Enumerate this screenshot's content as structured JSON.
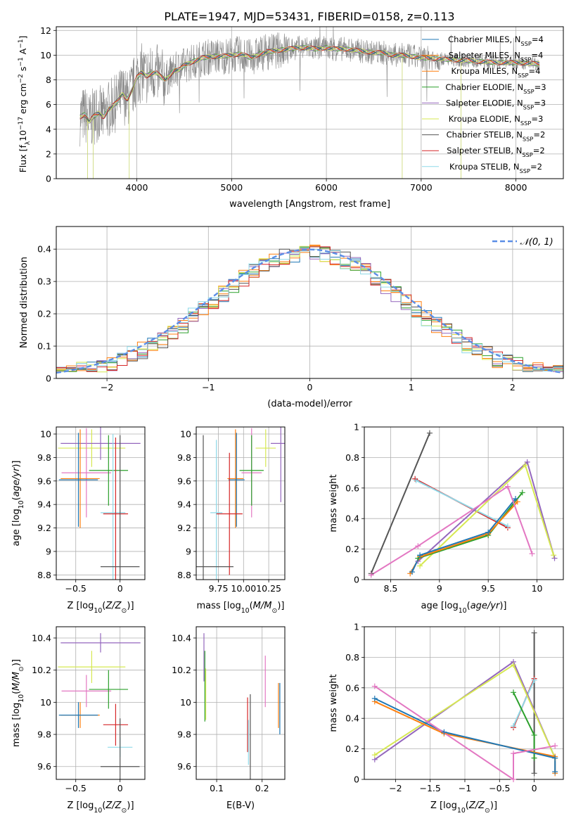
{
  "figure_title": "PLATE=1947, MJD=53431, FIBERID=0158, z=0.113",
  "colors": {
    "chabrier_miles": "#1f77b4",
    "salpeter_miles": "#ff7f0e",
    "kroupa_miles": "#ff7f0e",
    "chabrier_elodie": "#2ca02c",
    "salpeter_elodie": "#9467bd",
    "kroupa_elodie": "#d6e852",
    "chabrier_stelib": "#555555",
    "salpeter_stelib": "#d62728",
    "kroupa_stelib": "#8fd9e8",
    "pink": "#e377c2",
    "normal": "#5b8ee6",
    "data": "#888888",
    "grid": "#b0b0b0"
  },
  "chart_data": [
    {
      "id": "spectrum",
      "type": "line",
      "xlabel": "wavelength [Angstrom, rest frame]",
      "ylabel_base": "Flux [f",
      "ylabel_sub": "λ",
      "ylabel_mid": "10",
      "ylabel_sup1": "−17",
      "ylabel_mid2": " erg cm",
      "ylabel_sup2": "−2",
      "ylabel_mid3": " s",
      "ylabel_sup3": "−1",
      "ylabel_mid4": " A",
      "ylabel_sup4": "−1",
      "ylabel_end": "]",
      "xlim": [
        3150,
        8500
      ],
      "ylim": [
        0,
        12.3
      ],
      "xticks": [
        4000,
        5000,
        6000,
        7000,
        8000
      ],
      "yticks": [
        0,
        2,
        4,
        6,
        8,
        10,
        12
      ],
      "legend": [
        {
          "name": "Chabrier MILES, N",
          "sub": "SSP",
          "suffix": "=4",
          "color": "#1f77b4"
        },
        {
          "name": "Salpeter MILES, N",
          "sub": "SSP",
          "suffix": "=4",
          "color": "#ff7f0e"
        },
        {
          "name": "Kroupa MILES, N",
          "sub": "SSP",
          "suffix": "=4",
          "color": "#ff7f0e"
        },
        {
          "name": "Chabrier ELODIE, N",
          "sub": "SSP",
          "suffix": "=3",
          "color": "#2ca02c"
        },
        {
          "name": "Salpeter ELODIE, N",
          "sub": "SSP",
          "suffix": "=3",
          "color": "#9467bd"
        },
        {
          "name": "Kroupa ELODIE, N",
          "sub": "SSP",
          "suffix": "=3",
          "color": "#d6e852"
        },
        {
          "name": "Chabrier STELIB, N",
          "sub": "SSP",
          "suffix": "=2",
          "color": "#555555"
        },
        {
          "name": "Salpeter STELIB, N",
          "sub": "SSP",
          "suffix": "=2",
          "color": "#d62728"
        },
        {
          "name": "Kroupa STELIB, N",
          "sub": "SSP",
          "suffix": "=2",
          "color": "#8fd9e8"
        }
      ],
      "model_continuum": [
        [
          3400,
          5.0
        ],
        [
          3450,
          5.2
        ],
        [
          3500,
          4.6
        ],
        [
          3550,
          5.1
        ],
        [
          3600,
          5.3
        ],
        [
          3650,
          5.0
        ],
        [
          3700,
          5.6
        ],
        [
          3750,
          5.9
        ],
        [
          3800,
          6.3
        ],
        [
          3850,
          6.9
        ],
        [
          3900,
          6.4
        ],
        [
          3950,
          7.2
        ],
        [
          4000,
          8.2
        ],
        [
          4050,
          8.6
        ],
        [
          4100,
          8.3
        ],
        [
          4150,
          8.5
        ],
        [
          4200,
          8.6
        ],
        [
          4250,
          8.3
        ],
        [
          4300,
          8.0
        ],
        [
          4350,
          8.4
        ],
        [
          4400,
          8.8
        ],
        [
          4450,
          8.8
        ],
        [
          4500,
          9.2
        ],
        [
          4600,
          9.5
        ],
        [
          4700,
          9.8
        ],
        [
          4800,
          9.9
        ],
        [
          4900,
          9.9
        ],
        [
          5000,
          10.0
        ],
        [
          5100,
          10.1
        ],
        [
          5200,
          9.8
        ],
        [
          5300,
          10.1
        ],
        [
          5400,
          10.3
        ],
        [
          5500,
          10.4
        ],
        [
          5600,
          10.5
        ],
        [
          5700,
          10.6
        ],
        [
          5800,
          10.6
        ],
        [
          5900,
          10.5
        ],
        [
          6000,
          10.6
        ],
        [
          6100,
          10.5
        ],
        [
          6200,
          10.5
        ],
        [
          6300,
          10.4
        ],
        [
          6400,
          10.3
        ],
        [
          6500,
          10.2
        ],
        [
          6600,
          10.2
        ],
        [
          6700,
          10.0
        ],
        [
          6800,
          10.0
        ],
        [
          6900,
          9.9
        ],
        [
          7000,
          9.8
        ],
        [
          7200,
          9.7
        ],
        [
          7400,
          9.6
        ],
        [
          7600,
          9.5
        ],
        [
          7800,
          9.4
        ],
        [
          8000,
          9.4
        ],
        [
          8250,
          9.3
        ]
      ]
    },
    {
      "id": "residuals",
      "type": "line",
      "xlabel": "(data-model)/error",
      "ylabel": "Normed distribution",
      "legend_label": "𝒩(0, 1)",
      "xlim": [
        -2.5,
        2.5
      ],
      "ylim": [
        0,
        0.47
      ],
      "xticks": [
        -2,
        -1,
        0,
        1,
        2
      ],
      "yticks": [
        0.0,
        0.1,
        0.2,
        0.3,
        0.4
      ],
      "bin_width": 0.1
    },
    {
      "id": "z_vs_age",
      "type": "scatter",
      "xlabel": "Z [log",
      "xlabel_sub": "10",
      "xlabel_rest": "(Z/Z",
      "xlabel_sub2": "⊙",
      "xlabel_end": ")]",
      "ylabel": "age  [log",
      "ylabel_sub": "10",
      "ylabel_rest": "(age/yr)]",
      "xlim": [
        -0.72,
        0.28
      ],
      "ylim": [
        8.76,
        10.06
      ],
      "xticks": [
        -0.5,
        0.0
      ],
      "yticks": [
        8.8,
        9.0,
        9.2,
        9.4,
        9.6,
        9.8,
        10.0
      ],
      "points": [
        {
          "x": -0.32,
          "y": 9.88,
          "xerr": 0.38,
          "yerr": 0.16,
          "c": "kroupa_elodie"
        },
        {
          "x": -0.22,
          "y": 9.92,
          "xerr": 0.45,
          "yerr": 0.14,
          "c": "salpeter_elodie"
        },
        {
          "x": -0.38,
          "y": 9.67,
          "xerr": 0.28,
          "yerr": 0.38,
          "c": "pink"
        },
        {
          "x": -0.45,
          "y": 9.62,
          "xerr": 0.22,
          "yerr": 0.42,
          "c": "salpeter_miles"
        },
        {
          "x": -0.47,
          "y": 9.61,
          "xerr": 0.22,
          "yerr": 0.4,
          "c": "chabrier_miles"
        },
        {
          "x": -0.13,
          "y": 9.69,
          "xerr": 0.22,
          "yerr": 0.3,
          "c": "chabrier_elodie"
        },
        {
          "x": -0.08,
          "y": 9.33,
          "xerr": 0.14,
          "yerr": 0.67,
          "c": "kroupa_stelib"
        },
        {
          "x": -0.05,
          "y": 9.32,
          "xerr": 0.14,
          "yerr": 0.65,
          "c": "salpeter_stelib"
        },
        {
          "x": 0.0,
          "y": 8.87,
          "xerr": 0.22,
          "yerr": 1.12,
          "c": "chabrier_stelib"
        }
      ]
    },
    {
      "id": "mass_vs_age",
      "type": "scatter",
      "xlabel": "mass [log",
      "xlabel_sub": "10",
      "xlabel_rest": "(M/M",
      "xlabel_sub2": "⊙",
      "xlabel_end": ")]",
      "xlim": [
        9.53,
        10.41
      ],
      "ylim": [
        8.76,
        10.06
      ],
      "xticks": [
        9.75,
        10.0,
        10.25
      ],
      "xtick_labels": [
        "9.75",
        "10.00",
        "10.25"
      ],
      "yticks": [
        8.8,
        9.0,
        9.2,
        9.4,
        9.6,
        9.8,
        10.0
      ],
      "points": [
        {
          "x": 10.22,
          "y": 9.88,
          "xerr": 0.1,
          "yerr": 0.16,
          "c": "kroupa_elodie"
        },
        {
          "x": 10.37,
          "y": 9.92,
          "xerr": 0.1,
          "yerr": 0.5,
          "c": "salpeter_elodie"
        },
        {
          "x": 10.08,
          "y": 9.67,
          "xerr": 0.1,
          "yerr": 0.38,
          "c": "pink"
        },
        {
          "x": 9.92,
          "y": 9.62,
          "xerr": 0.08,
          "yerr": 0.42,
          "c": "salpeter_miles"
        },
        {
          "x": 9.93,
          "y": 9.61,
          "xerr": 0.08,
          "yerr": 0.4,
          "c": "chabrier_miles"
        },
        {
          "x": 10.08,
          "y": 9.69,
          "xerr": 0.12,
          "yerr": 0.3,
          "c": "chabrier_elodie"
        },
        {
          "x": 9.73,
          "y": 9.33,
          "xerr": 0.06,
          "yerr": 0.62,
          "c": "kroupa_stelib"
        },
        {
          "x": 9.86,
          "y": 9.32,
          "xerr": 0.13,
          "yerr": 0.52,
          "c": "salpeter_stelib"
        },
        {
          "x": 9.6,
          "y": 8.87,
          "xerr": 0.3,
          "yerr": 1.12,
          "c": "chabrier_stelib"
        }
      ]
    },
    {
      "id": "age_vs_weight",
      "type": "line",
      "xlabel": "age  [log",
      "xlabel_sub": "10",
      "xlabel_rest": "(age/yr)]",
      "ylabel": "mass weight",
      "xlim": [
        8.23,
        10.27
      ],
      "ylim": [
        0.0,
        1.0
      ],
      "xticks": [
        8.5,
        9.0,
        9.5,
        10.0
      ],
      "yticks": [
        0.0,
        0.2,
        0.4,
        0.6,
        0.8,
        1.0
      ],
      "series": [
        {
          "c": "chabrier_stelib",
          "pts": [
            [
              8.3,
              0.04
            ],
            [
              8.9,
              0.96
            ]
          ]
        },
        {
          "c": "salpeter_stelib",
          "pts": [
            [
              8.75,
              0.66
            ],
            [
              9.7,
              0.34
            ]
          ]
        },
        {
          "c": "kroupa_stelib",
          "pts": [
            [
              8.76,
              0.65
            ],
            [
              9.7,
              0.35
            ]
          ]
        },
        {
          "c": "salpeter_elodie",
          "pts": [
            [
              8.78,
              0.12
            ],
            [
              9.9,
              0.77
            ],
            [
              10.18,
              0.14
            ]
          ]
        },
        {
          "c": "kroupa_elodie",
          "pts": [
            [
              8.8,
              0.09
            ],
            [
              9.88,
              0.75
            ],
            [
              10.17,
              0.16
            ]
          ]
        },
        {
          "c": "chabrier_elodie",
          "pts": [
            [
              8.78,
              0.14
            ],
            [
              9.5,
              0.29
            ],
            [
              9.85,
              0.57
            ]
          ]
        },
        {
          "c": "salpeter_miles",
          "pts": [
            [
              8.7,
              0.04
            ],
            [
              8.8,
              0.15
            ],
            [
              9.5,
              0.3
            ],
            [
              9.8,
              0.51
            ]
          ]
        },
        {
          "c": "chabrier_miles",
          "pts": [
            [
              8.72,
              0.05
            ],
            [
              8.8,
              0.16
            ],
            [
              9.5,
              0.31
            ],
            [
              9.78,
              0.53
            ]
          ]
        },
        {
          "c": "pink",
          "pts": [
            [
              8.3,
              0.03
            ],
            [
              8.78,
              0.22
            ],
            [
              9.7,
              0.61
            ],
            [
              9.95,
              0.17
            ]
          ]
        }
      ]
    },
    {
      "id": "z_vs_mass",
      "type": "scatter",
      "xlabel": "Z [log",
      "xlabel_sub": "10",
      "xlabel_rest": "(Z/Z",
      "xlabel_sub2": "⊙",
      "xlabel_end": ")]",
      "ylabel": "mass [log",
      "ylabel_sub": "10",
      "ylabel_rest": "(M/M",
      "ylabel_sub2": "⊙",
      "ylabel_end": ")]",
      "xlim": [
        -0.72,
        0.28
      ],
      "ylim": [
        9.52,
        10.47
      ],
      "xticks": [
        -0.5,
        0.0
      ],
      "yticks": [
        9.6,
        9.8,
        10.0,
        10.2,
        10.4
      ],
      "points": [
        {
          "x": -0.22,
          "y": 10.37,
          "xerr": 0.45,
          "yerr": 0.06,
          "c": "salpeter_elodie"
        },
        {
          "x": -0.32,
          "y": 10.22,
          "xerr": 0.38,
          "yerr": 0.1,
          "c": "kroupa_elodie"
        },
        {
          "x": -0.38,
          "y": 10.07,
          "xerr": 0.28,
          "yerr": 0.1,
          "c": "pink"
        },
        {
          "x": -0.13,
          "y": 10.08,
          "xerr": 0.22,
          "yerr": 0.12,
          "c": "chabrier_elodie"
        },
        {
          "x": -0.45,
          "y": 9.92,
          "xerr": 0.22,
          "yerr": 0.08,
          "c": "salpeter_miles"
        },
        {
          "x": -0.47,
          "y": 9.92,
          "xerr": 0.22,
          "yerr": 0.08,
          "c": "chabrier_miles"
        },
        {
          "x": -0.05,
          "y": 9.86,
          "xerr": 0.14,
          "yerr": 0.13,
          "c": "salpeter_stelib"
        },
        {
          "x": 0.0,
          "y": 9.72,
          "xerr": 0.14,
          "yerr": 0.06,
          "c": "kroupa_stelib"
        },
        {
          "x": 0.0,
          "y": 9.6,
          "xerr": 0.22,
          "yerr": 0.3,
          "c": "chabrier_stelib"
        }
      ]
    },
    {
      "id": "ebv_vs_mass",
      "type": "scatter",
      "xlabel": "E(B-V)",
      "xlim": [
        0.055,
        0.25
      ],
      "ylim": [
        9.52,
        10.47
      ],
      "xticks": [
        0.1,
        0.2
      ],
      "yticks": [
        9.6,
        9.8,
        10.0,
        10.2,
        10.4
      ],
      "points": [
        {
          "x": 0.072,
          "y": 10.28,
          "xerr": 0,
          "yerr": 0.15,
          "c": "salpeter_elodie"
        },
        {
          "x": 0.074,
          "y": 10.1,
          "xerr": 0,
          "yerr": 0.22,
          "c": "chabrier_elodie"
        },
        {
          "x": 0.076,
          "y": 10.05,
          "xerr": 0,
          "yerr": 0.16,
          "c": "kroupa_elodie"
        },
        {
          "x": 0.168,
          "y": 9.86,
          "xerr": 0,
          "yerr": 0.17,
          "c": "salpeter_stelib"
        },
        {
          "x": 0.17,
          "y": 9.75,
          "xerr": 0,
          "yerr": 0.14,
          "c": "kroupa_stelib"
        },
        {
          "x": 0.174,
          "y": 9.78,
          "xerr": 0,
          "yerr": 0.27,
          "c": "chabrier_stelib"
        },
        {
          "x": 0.207,
          "y": 10.13,
          "xerr": 0,
          "yerr": 0.16,
          "c": "pink"
        },
        {
          "x": 0.236,
          "y": 9.98,
          "xerr": 0,
          "yerr": 0.14,
          "c": "salpeter_miles"
        },
        {
          "x": 0.239,
          "y": 9.96,
          "xerr": 0,
          "yerr": 0.16,
          "c": "chabrier_miles"
        }
      ]
    },
    {
      "id": "z_vs_weight",
      "type": "line",
      "xlabel": "Z [log",
      "xlabel_sub": "10",
      "xlabel_rest": "(Z/Z",
      "xlabel_sub2": "⊙",
      "xlabel_end": ")]",
      "ylabel": "mass weight",
      "xlim": [
        -2.45,
        0.42
      ],
      "ylim": [
        0.0,
        1.0
      ],
      "xticks": [
        -2.0,
        -1.5,
        -1.0,
        -0.5,
        0.0
      ],
      "yticks": [
        0.0,
        0.2,
        0.4,
        0.6,
        0.8,
        1.0
      ],
      "series": [
        {
          "c": "chabrier_stelib",
          "pts": [
            [
              0.0,
              0.04
            ],
            [
              0.0,
              0.96
            ]
          ]
        },
        {
          "c": "salpeter_stelib",
          "pts": [
            [
              0.0,
              0.66
            ],
            [
              -0.3,
              0.34
            ]
          ]
        },
        {
          "c": "kroupa_stelib",
          "pts": [
            [
              0.0,
              0.65
            ],
            [
              -0.3,
              0.35
            ]
          ]
        },
        {
          "c": "salpeter_elodie",
          "pts": [
            [
              -2.3,
              0.13
            ],
            [
              -0.3,
              0.77
            ],
            [
              0.3,
              0.14
            ]
          ]
        },
        {
          "c": "kroupa_elodie",
          "pts": [
            [
              -2.3,
              0.16
            ],
            [
              -0.3,
              0.75
            ],
            [
              0.3,
              0.14
            ]
          ]
        },
        {
          "c": "chabrier_elodie",
          "pts": [
            [
              -0.3,
              0.57
            ],
            [
              0.0,
              0.29
            ],
            [
              0.0,
              0.14
            ]
          ]
        },
        {
          "c": "salpeter_miles",
          "pts": [
            [
              -2.3,
              0.51
            ],
            [
              -1.3,
              0.3
            ],
            [
              0.3,
              0.15
            ],
            [
              0.3,
              0.04
            ]
          ]
        },
        {
          "c": "chabrier_miles",
          "pts": [
            [
              -2.3,
              0.53
            ],
            [
              -1.3,
              0.31
            ],
            [
              0.3,
              0.14
            ],
            [
              0.3,
              0.05
            ]
          ]
        },
        {
          "c": "pink",
          "pts": [
            [
              -2.3,
              0.61
            ],
            [
              -0.3,
              0.0
            ],
            [
              -0.3,
              0.17
            ],
            [
              0.3,
              0.22
            ]
          ]
        }
      ]
    }
  ]
}
